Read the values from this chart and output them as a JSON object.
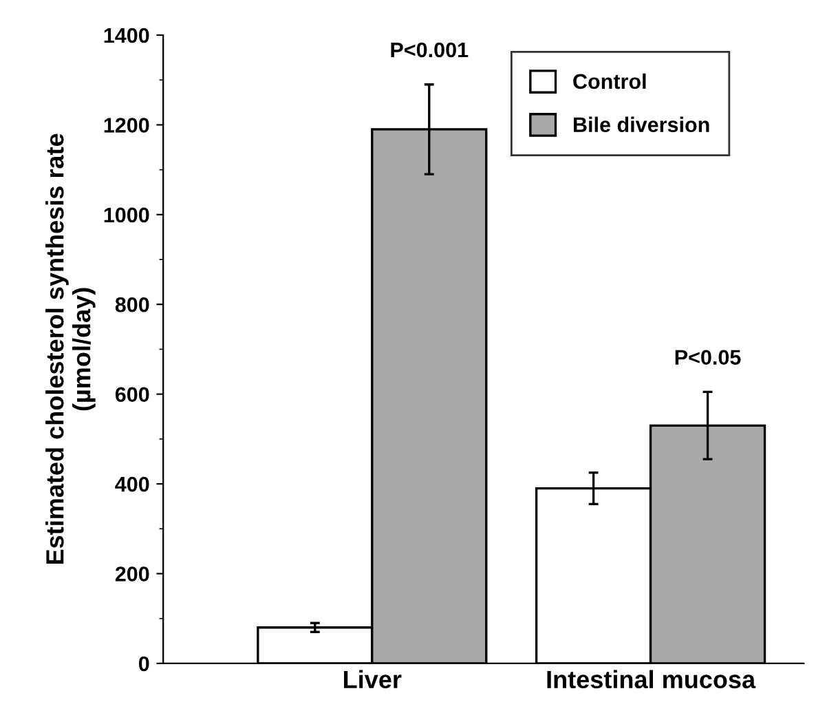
{
  "chart_data": {
    "type": "bar",
    "ylabel": "Estimated cholesterol synthesis rate\n(µmol/day)",
    "categories": [
      "Liver",
      "Intestinal mucosa"
    ],
    "series": [
      {
        "name": "Control",
        "color": "#ffffff",
        "values": [
          80,
          390
        ],
        "errors": [
          10,
          35
        ]
      },
      {
        "name": "Bile diversion",
        "color": "#a9a9a9",
        "values": [
          1190,
          530
        ],
        "errors": [
          100,
          75
        ]
      }
    ],
    "annotations": [
      "P<0.001",
      "P<0.05"
    ],
    "ylim": [
      0,
      1400
    ],
    "yticks": [
      0,
      200,
      400,
      600,
      800,
      1000,
      1200,
      1400
    ],
    "legend": "top right",
    "grid": false
  }
}
